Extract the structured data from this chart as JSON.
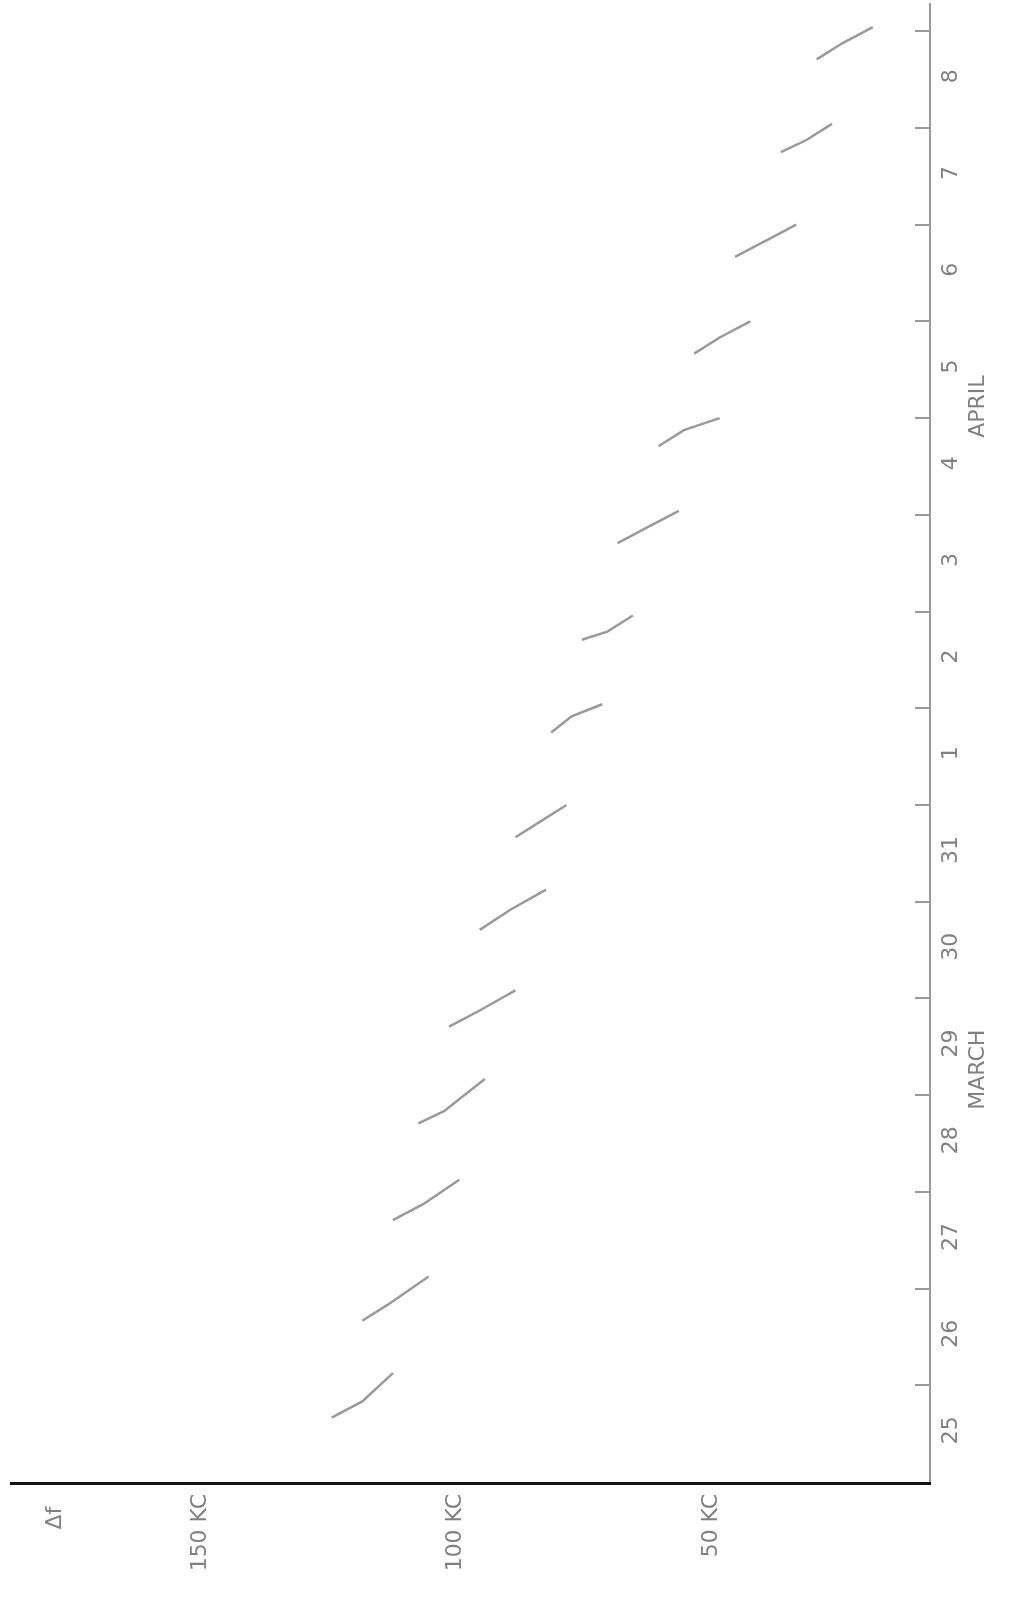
{
  "chart_data": {
    "type": "line",
    "orientation": "horizontal",
    "annotations": [
      "Δf",
      "MARCH",
      "APRIL"
    ],
    "x": [
      "--03-25T16:00",
      "--03-25T20:00",
      "--03-26T03:00",
      null,
      "--03-26T16:00",
      "--03-26T20:00",
      "--03-27T03:00",
      null,
      "--03-27T17:00",
      "--03-27T21:00",
      "--03-28T03:00",
      null,
      "--03-28T17:00",
      "--03-28T20:00",
      "--03-29T04:00",
      null,
      "--03-29T17:00",
      "--03-29T21:00",
      "--03-30T02:00",
      null,
      "--03-30T17:00",
      "--03-30T22:00",
      "--03-31T03:00",
      null,
      "--03-31T16:00",
      "--03-31T20:00",
      "--04-01T00:00",
      null,
      "--04-01T18:00",
      "--04-01T22:00",
      "--04-02T01:00",
      null,
      "--04-02T17:00",
      "--04-02T19:00",
      "--04-02T23:00",
      null,
      "--04-03T17:00",
      "--04-03T21:00",
      "--04-04T01:00",
      null,
      "--04-04T17:00",
      "--04-04T21:00",
      "--04-05T00:00",
      null,
      "--04-05T16:00",
      "--04-05T20:00",
      "--04-06T00:00",
      null,
      "--04-06T16:00",
      "--04-06T20:00",
      "--04-07T00:00",
      null,
      "--04-07T18:00",
      "--04-07T21:00",
      "--04-08T01:00",
      null,
      "--04-08T17:00",
      "--04-08T21:00",
      "--04-09T01:00"
    ],
    "values": [
      124,
      118,
      112,
      null,
      118,
      113,
      105,
      null,
      112,
      106,
      99,
      null,
      107,
      102,
      94,
      null,
      101,
      95,
      88,
      null,
      95,
      89,
      82,
      null,
      88,
      83,
      78,
      null,
      81,
      77,
      71,
      null,
      75,
      70,
      65,
      null,
      68,
      62,
      56,
      null,
      60,
      55,
      48,
      null,
      53,
      48,
      42,
      null,
      45,
      39,
      33,
      null,
      36,
      31,
      26,
      null,
      29,
      24,
      18
    ],
    "color": "#9a9a9a",
    "marker": "none",
    "line_style": "solid",
    "legend": false,
    "xlim": [
      187,
      7
    ],
    "xticks": [
      {
        "value": 150,
        "label": "150 KC"
      },
      {
        "value": 100,
        "label": "100 KC"
      },
      {
        "value": 50,
        "label": "50 KC"
      }
    ],
    "ylim": [
      "--03-25T00:00",
      "--04-09T07:00"
    ],
    "yticks": [
      {
        "value": "--03-25T12:00",
        "label": "25"
      },
      {
        "value": "--03-26",
        "label": null
      },
      {
        "value": "--03-26T12:00",
        "label": "26"
      },
      {
        "value": "--03-27",
        "label": null
      },
      {
        "value": "--03-27T12:00",
        "label": "27"
      },
      {
        "value": "--03-28",
        "label": null
      },
      {
        "value": "--03-28T12:00",
        "label": "28"
      },
      {
        "value": "--03-29",
        "label": null
      },
      {
        "value": "--03-29T12:00",
        "label": "29"
      },
      {
        "value": "--03-30",
        "label": null
      },
      {
        "value": "--03-30T12:00",
        "label": "30"
      },
      {
        "value": "--03-31",
        "label": null
      },
      {
        "value": "--03-31T12:00",
        "label": "31"
      },
      {
        "value": "--04-01",
        "label": null
      },
      {
        "value": "--04-01T12:00",
        "label": "1"
      },
      {
        "value": "--04-02",
        "label": null
      },
      {
        "value": "--04-02T12:00",
        "label": "2"
      },
      {
        "value": "--04-03",
        "label": null
      },
      {
        "value": "--04-03T12:00",
        "label": "3"
      },
      {
        "value": "--04-04",
        "label": null
      },
      {
        "value": "--04-04T12:00",
        "label": "4"
      },
      {
        "value": "--04-05",
        "label": null
      },
      {
        "value": "--04-05T12:00",
        "label": "5"
      },
      {
        "value": "--04-06",
        "label": null
      },
      {
        "value": "--04-06T12:00",
        "label": "6"
      },
      {
        "value": "--04-07",
        "label": null
      },
      {
        "value": "--04-07T12:00",
        "label": "7"
      },
      {
        "value": "--04-08",
        "label": null
      },
      {
        "value": "--04-08T12:00",
        "label": "8"
      },
      {
        "value": "--04-09",
        "label": null
      }
    ]
  }
}
